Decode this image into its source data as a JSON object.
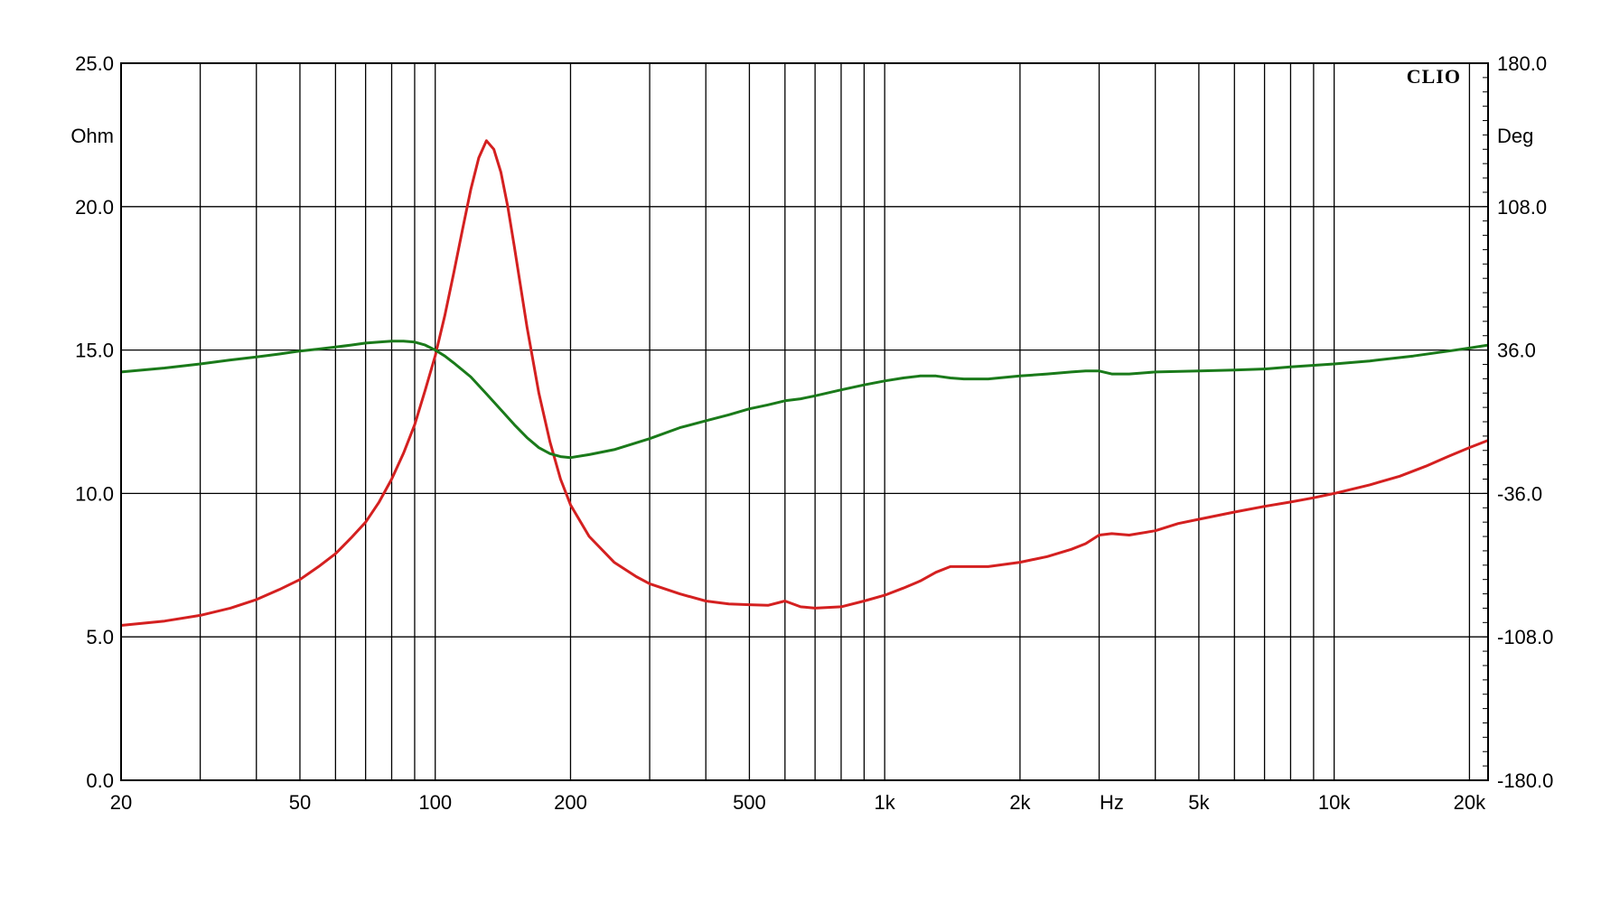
{
  "chart_data": {
    "type": "line",
    "brand": "CLIO",
    "xlabel": "Hz",
    "ylabel_left": "Ohm",
    "ylabel_right": "Deg",
    "x_scale": "log",
    "xlim": [
      20,
      22000
    ],
    "ylim_left": [
      0,
      25
    ],
    "ylim_right": [
      -180,
      180
    ],
    "grid": true,
    "x_tick_labels": [
      {
        "value": 20,
        "label": "20"
      },
      {
        "value": 50,
        "label": "50"
      },
      {
        "value": 100,
        "label": "100"
      },
      {
        "value": 200,
        "label": "200"
      },
      {
        "value": 500,
        "label": "500"
      },
      {
        "value": 1000,
        "label": "1k"
      },
      {
        "value": 2000,
        "label": "2k"
      },
      {
        "value": 5000,
        "label": "5k"
      },
      {
        "value": 10000,
        "label": "10k"
      },
      {
        "value": 20000,
        "label": "20k"
      }
    ],
    "y_left_tick_labels": [
      "0.0",
      "5.0",
      "10.0",
      "15.0",
      "20.0",
      "25.0"
    ],
    "y_right_tick_labels": [
      "-180.0",
      "-108.0",
      "-36.0",
      "36.0",
      "108.0",
      "180.0"
    ],
    "series": [
      {
        "axis": "left",
        "color": "#d42020",
        "points": [
          [
            20,
            5.4
          ],
          [
            25,
            5.55
          ],
          [
            30,
            5.75
          ],
          [
            35,
            6.0
          ],
          [
            40,
            6.3
          ],
          [
            45,
            6.65
          ],
          [
            50,
            7.0
          ],
          [
            55,
            7.45
          ],
          [
            60,
            7.9
          ],
          [
            65,
            8.45
          ],
          [
            70,
            9.0
          ],
          [
            75,
            9.7
          ],
          [
            80,
            10.5
          ],
          [
            85,
            11.4
          ],
          [
            90,
            12.4
          ],
          [
            95,
            13.6
          ],
          [
            100,
            14.8
          ],
          [
            105,
            16.2
          ],
          [
            110,
            17.7
          ],
          [
            115,
            19.2
          ],
          [
            120,
            20.6
          ],
          [
            125,
            21.7
          ],
          [
            130,
            22.3
          ],
          [
            135,
            22.0
          ],
          [
            140,
            21.2
          ],
          [
            145,
            20.0
          ],
          [
            150,
            18.6
          ],
          [
            160,
            15.8
          ],
          [
            170,
            13.5
          ],
          [
            180,
            11.8
          ],
          [
            190,
            10.5
          ],
          [
            200,
            9.6
          ],
          [
            220,
            8.5
          ],
          [
            250,
            7.6
          ],
          [
            280,
            7.1
          ],
          [
            300,
            6.85
          ],
          [
            350,
            6.5
          ],
          [
            400,
            6.25
          ],
          [
            450,
            6.15
          ],
          [
            500,
            6.12
          ],
          [
            550,
            6.1
          ],
          [
            600,
            6.25
          ],
          [
            650,
            6.05
          ],
          [
            700,
            6.0
          ],
          [
            800,
            6.05
          ],
          [
            900,
            6.25
          ],
          [
            1000,
            6.45
          ],
          [
            1100,
            6.7
          ],
          [
            1200,
            6.95
          ],
          [
            1300,
            7.25
          ],
          [
            1400,
            7.45
          ],
          [
            1500,
            7.45
          ],
          [
            1700,
            7.45
          ],
          [
            2000,
            7.6
          ],
          [
            2300,
            7.8
          ],
          [
            2600,
            8.05
          ],
          [
            2800,
            8.25
          ],
          [
            3000,
            8.55
          ],
          [
            3200,
            8.6
          ],
          [
            3500,
            8.55
          ],
          [
            4000,
            8.7
          ],
          [
            4500,
            8.95
          ],
          [
            5000,
            9.1
          ],
          [
            6000,
            9.35
          ],
          [
            7000,
            9.55
          ],
          [
            8000,
            9.7
          ],
          [
            9000,
            9.85
          ],
          [
            10000,
            10.0
          ],
          [
            12000,
            10.3
          ],
          [
            14000,
            10.6
          ],
          [
            16000,
            10.95
          ],
          [
            18000,
            11.3
          ],
          [
            20000,
            11.6
          ],
          [
            22000,
            11.85
          ]
        ]
      },
      {
        "axis": "right",
        "color": "#1a7a1a",
        "points": [
          [
            20,
            25
          ],
          [
            25,
            27
          ],
          [
            30,
            29
          ],
          [
            35,
            31
          ],
          [
            40,
            32.5
          ],
          [
            45,
            34
          ],
          [
            50,
            35.5
          ],
          [
            55,
            36.5
          ],
          [
            60,
            37.5
          ],
          [
            65,
            38.5
          ],
          [
            70,
            39.5
          ],
          [
            75,
            40
          ],
          [
            80,
            40.5
          ],
          [
            85,
            40.5
          ],
          [
            90,
            40
          ],
          [
            95,
            38.5
          ],
          [
            100,
            36
          ],
          [
            105,
            33
          ],
          [
            110,
            29.5
          ],
          [
            120,
            22.5
          ],
          [
            130,
            14
          ],
          [
            140,
            6
          ],
          [
            150,
            -1.5
          ],
          [
            160,
            -8
          ],
          [
            170,
            -13
          ],
          [
            180,
            -16
          ],
          [
            190,
            -17.5
          ],
          [
            200,
            -18
          ],
          [
            220,
            -16.5
          ],
          [
            250,
            -14
          ],
          [
            300,
            -8.5
          ],
          [
            350,
            -3
          ],
          [
            400,
            0.5
          ],
          [
            450,
            3.5
          ],
          [
            500,
            6.5
          ],
          [
            550,
            8.5
          ],
          [
            600,
            10.5
          ],
          [
            650,
            11.5
          ],
          [
            700,
            13
          ],
          [
            800,
            16
          ],
          [
            900,
            18.5
          ],
          [
            1000,
            20.5
          ],
          [
            1100,
            22
          ],
          [
            1200,
            23
          ],
          [
            1300,
            23
          ],
          [
            1400,
            22
          ],
          [
            1500,
            21.5
          ],
          [
            1700,
            21.5
          ],
          [
            2000,
            23
          ],
          [
            2300,
            24
          ],
          [
            2600,
            25
          ],
          [
            2800,
            25.5
          ],
          [
            3000,
            25.5
          ],
          [
            3200,
            24
          ],
          [
            3500,
            24
          ],
          [
            4000,
            25
          ],
          [
            5000,
            25.5
          ],
          [
            6000,
            26
          ],
          [
            7000,
            26.5
          ],
          [
            8000,
            27.5
          ],
          [
            10000,
            29
          ],
          [
            12000,
            30.5
          ],
          [
            15000,
            33
          ],
          [
            18000,
            35.5
          ],
          [
            20000,
            37
          ],
          [
            22000,
            38.5
          ]
        ]
      }
    ]
  }
}
